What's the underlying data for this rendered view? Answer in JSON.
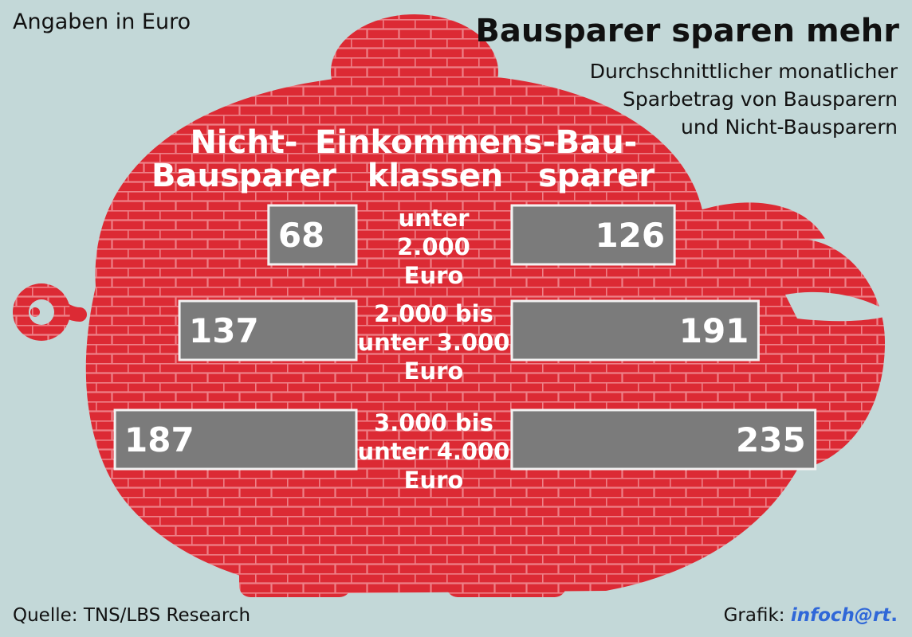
{
  "header": {
    "unit_note": "Angaben in Euro",
    "title": "Bausparer sparen mehr",
    "subtitle_lines": [
      "Durchschnittlicher monatlicher",
      "Sparbetrag von Bausparern",
      "und Nicht-Bausparern"
    ]
  },
  "footer": {
    "source": "Quelle: TNS/LBS Research",
    "credit_prefix": "Grafik: ",
    "credit_brand": "infoch@rt",
    "credit_suffix": "."
  },
  "chart_data": {
    "type": "bar",
    "orientation": "horizontal-butterfly",
    "column_headers": {
      "left": [
        "Nicht-",
        "Bausparer"
      ],
      "center": [
        "Einkommens-",
        "klassen"
      ],
      "right": [
        "Bau-",
        "sparer"
      ]
    },
    "categories": [
      [
        "unter",
        "2.000",
        "Euro"
      ],
      [
        "2.000 bis",
        "unter 3.000",
        "Euro"
      ],
      [
        "3.000 bis",
        "unter 4.000",
        "Euro"
      ]
    ],
    "series": [
      {
        "name": "Nicht-Bausparer",
        "side": "left",
        "values": [
          68,
          137,
          187
        ]
      },
      {
        "name": "Bausparer",
        "side": "right",
        "values": [
          126,
          191,
          235
        ]
      }
    ],
    "value_unit": "Euro",
    "colors": {
      "background": "#c3d8d8",
      "pig": "#dc2a34",
      "brick_mortar": "#ee7f86",
      "bar": "#7b7b7b",
      "bar_border": "#f2f2f2",
      "text_light": "#ffffff"
    }
  }
}
